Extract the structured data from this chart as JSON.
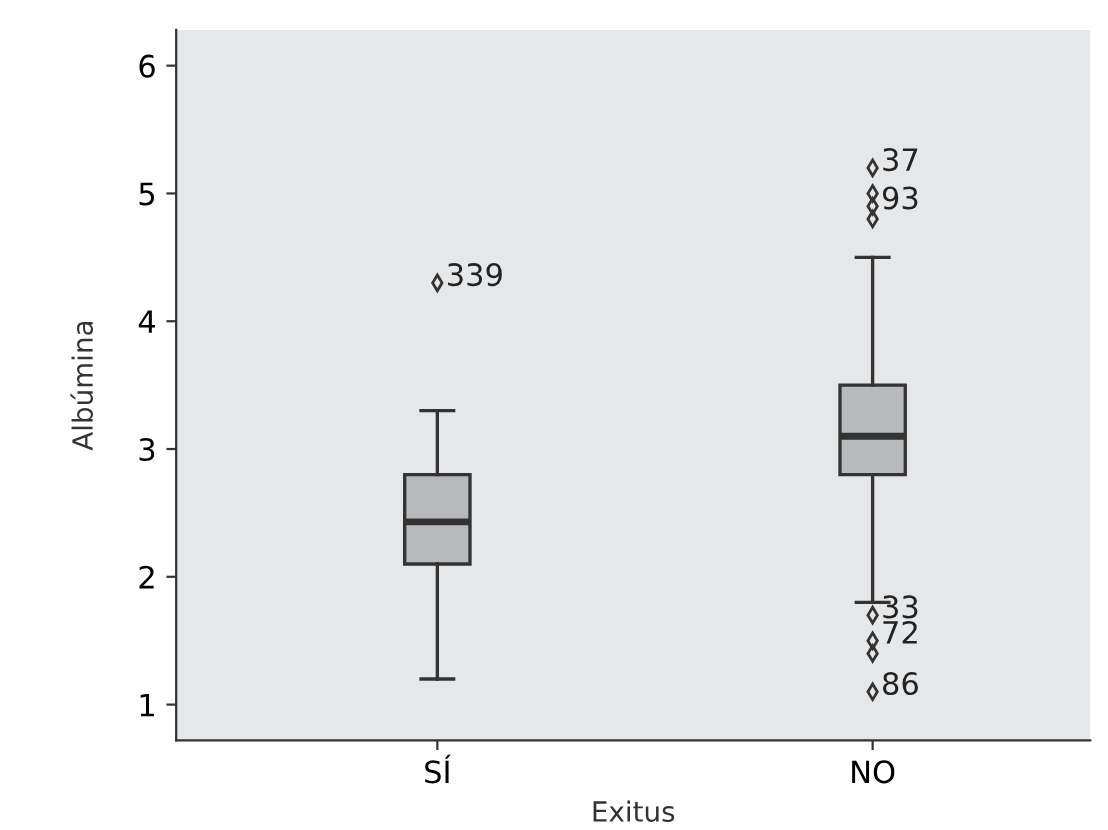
{
  "chart_data": {
    "type": "box",
    "xlabel": "Exitus",
    "ylabel": "Albúmina",
    "categories": [
      "SÍ",
      "NO"
    ],
    "boxes": [
      {
        "low": 1.2,
        "q1": 2.1,
        "median": 2.43,
        "q3": 2.8,
        "high": 3.3
      },
      {
        "low": 1.8,
        "q1": 2.8,
        "median": 3.1,
        "q3": 3.5,
        "high": 4.5
      }
    ],
    "color": "#b8b9bc",
    "ylim": [
      0.72,
      6.28
    ],
    "yticks": [
      1,
      2,
      3,
      4,
      5,
      6
    ],
    "grid": false,
    "series": [
      {
        "type": "scatter",
        "color": "#333333",
        "marker": "diamond",
        "x": [
          "SÍ",
          "NO",
          "NO",
          "NO",
          "NO",
          "NO",
          "NO",
          "NO",
          "NO"
        ],
        "values": [
          4.3,
          5.2,
          5.0,
          4.9,
          4.8,
          1.7,
          1.5,
          1.4,
          1.1
        ]
      }
    ],
    "annotations": [
      {
        "text": "339",
        "x": "SÍ",
        "y": 4.3
      },
      {
        "text": "37",
        "x": "NO",
        "y": 5.2
      },
      {
        "text": "93",
        "x": "NO",
        "y": 4.9
      },
      {
        "text": "33",
        "x": "NO",
        "y": 1.7
      },
      {
        "text": "72",
        "x": "NO",
        "y": 1.5
      },
      {
        "text": "86",
        "x": "NO",
        "y": 1.1
      }
    ]
  }
}
